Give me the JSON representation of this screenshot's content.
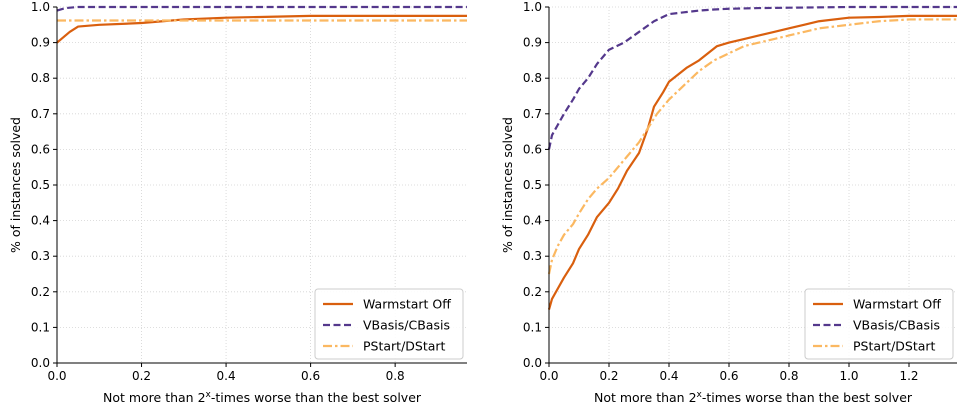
{
  "chart_data": [
    {
      "type": "line",
      "title": "",
      "xlabel": "Not more than 2^x-times worse than the best solver",
      "xlabel_parts": {
        "before": "Not more than 2",
        "sup": "x",
        "after": "-times worse than the best solver"
      },
      "ylabel": "% of instances solved",
      "xlim": [
        0,
        0.97
      ],
      "ylim": [
        0,
        1.0
      ],
      "xticks": [
        0,
        0.2,
        0.4,
        0.6,
        0.8
      ],
      "xtick_labels": [
        "0.0",
        "0.2",
        "0.4",
        "0.6",
        "0.8"
      ],
      "yticks": [
        0,
        0.1,
        0.2,
        0.3,
        0.4,
        0.5,
        0.6,
        0.7,
        0.8,
        0.9,
        1.0
      ],
      "ytick_labels": [
        "0.0",
        "0.1",
        "0.2",
        "0.3",
        "0.4",
        "0.5",
        "0.6",
        "0.7",
        "0.8",
        "0.9",
        "1.0"
      ],
      "grid": true,
      "legend_position": "bottom-right",
      "series": [
        {
          "name": "Warmstart Off",
          "color": "#d95f0e",
          "style": "solid",
          "x": [
            0,
            0.01,
            0.03,
            0.05,
            0.1,
            0.2,
            0.25,
            0.3,
            0.4,
            0.6,
            0.97
          ],
          "y": [
            0.9,
            0.91,
            0.93,
            0.945,
            0.95,
            0.955,
            0.96,
            0.965,
            0.97,
            0.975,
            0.975
          ]
        },
        {
          "name": "VBasis/CBasis",
          "color": "#54388c",
          "style": "dashed",
          "x": [
            0,
            0.02,
            0.05,
            0.97
          ],
          "y": [
            0.99,
            0.997,
            1.0,
            1.0
          ]
        },
        {
          "name": "PStart/DStart",
          "color": "#fbb861",
          "style": "dashdot",
          "x": [
            0,
            0.97
          ],
          "y": [
            0.962,
            0.962
          ]
        }
      ]
    },
    {
      "type": "line",
      "title": "",
      "xlabel": "Not more than 2^x-times worse than the best solver",
      "xlabel_parts": {
        "before": "Not more than 2",
        "sup": "x",
        "after": "-times worse than the best solver"
      },
      "ylabel": "% of instances solved",
      "xlim": [
        0,
        1.36
      ],
      "ylim": [
        0,
        1.0
      ],
      "xticks": [
        0,
        0.2,
        0.4,
        0.6,
        0.8,
        1.0,
        1.2
      ],
      "xtick_labels": [
        "0.0",
        "0.2",
        "0.4",
        "0.6",
        "0.8",
        "1.0",
        "1.2"
      ],
      "yticks": [
        0,
        0.1,
        0.2,
        0.3,
        0.4,
        0.5,
        0.6,
        0.7,
        0.8,
        0.9,
        1.0
      ],
      "ytick_labels": [
        "0.0",
        "0.1",
        "0.2",
        "0.3",
        "0.4",
        "0.5",
        "0.6",
        "0.7",
        "0.8",
        "0.9",
        "1.0"
      ],
      "grid": true,
      "legend_position": "bottom-right",
      "series": [
        {
          "name": "Warmstart Off",
          "color": "#d95f0e",
          "style": "solid",
          "x": [
            0,
            0.01,
            0.03,
            0.05,
            0.08,
            0.1,
            0.13,
            0.16,
            0.2,
            0.23,
            0.26,
            0.3,
            0.33,
            0.35,
            0.38,
            0.4,
            0.43,
            0.46,
            0.5,
            0.53,
            0.56,
            0.6,
            0.65,
            0.7,
            0.75,
            0.8,
            0.85,
            0.9,
            1.0,
            1.1,
            1.2,
            1.36
          ],
          "y": [
            0.15,
            0.18,
            0.21,
            0.24,
            0.28,
            0.32,
            0.36,
            0.41,
            0.45,
            0.49,
            0.54,
            0.59,
            0.66,
            0.72,
            0.76,
            0.79,
            0.81,
            0.83,
            0.85,
            0.87,
            0.89,
            0.9,
            0.91,
            0.92,
            0.93,
            0.94,
            0.95,
            0.96,
            0.97,
            0.972,
            0.975,
            0.975
          ]
        },
        {
          "name": "VBasis/CBasis",
          "color": "#54388c",
          "style": "dashed",
          "x": [
            0,
            0.01,
            0.03,
            0.05,
            0.08,
            0.1,
            0.13,
            0.16,
            0.2,
            0.25,
            0.3,
            0.35,
            0.4,
            0.45,
            0.5,
            0.55,
            0.6,
            0.7,
            0.8,
            1.0,
            1.36
          ],
          "y": [
            0.6,
            0.64,
            0.67,
            0.7,
            0.74,
            0.77,
            0.8,
            0.84,
            0.88,
            0.9,
            0.93,
            0.96,
            0.98,
            0.985,
            0.99,
            0.993,
            0.995,
            0.997,
            0.998,
            1.0,
            1.0
          ]
        },
        {
          "name": "PStart/DStart",
          "color": "#fbb861",
          "style": "dashdot",
          "x": [
            0,
            0.01,
            0.03,
            0.05,
            0.08,
            0.1,
            0.13,
            0.16,
            0.2,
            0.23,
            0.26,
            0.3,
            0.33,
            0.36,
            0.4,
            0.45,
            0.5,
            0.55,
            0.6,
            0.65,
            0.7,
            0.75,
            0.8,
            0.85,
            0.9,
            1.0,
            1.1,
            1.2,
            1.36
          ],
          "y": [
            0.25,
            0.29,
            0.33,
            0.36,
            0.39,
            0.42,
            0.46,
            0.49,
            0.52,
            0.55,
            0.58,
            0.62,
            0.66,
            0.7,
            0.74,
            0.78,
            0.82,
            0.85,
            0.87,
            0.89,
            0.9,
            0.91,
            0.92,
            0.93,
            0.94,
            0.95,
            0.96,
            0.965,
            0.965
          ]
        }
      ]
    }
  ]
}
